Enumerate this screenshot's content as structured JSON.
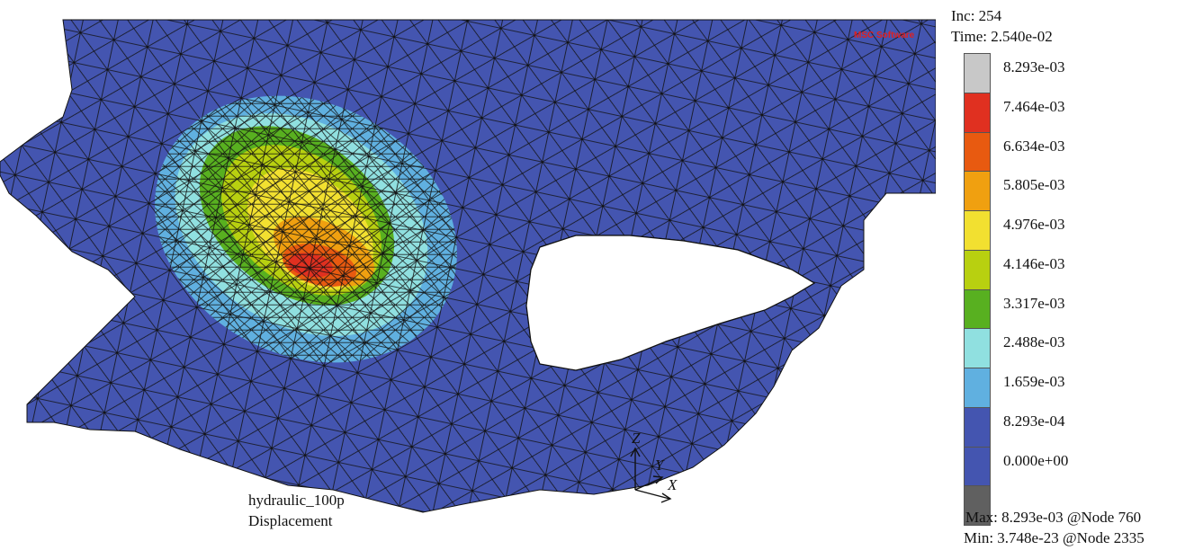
{
  "header": {
    "increment": "Inc: 254",
    "time": "Time: 2.540e-02"
  },
  "logo": {
    "text": "MSC Software",
    "color": "#e02020"
  },
  "legend": {
    "labels": [
      "8.293e-03",
      "7.464e-03",
      "6.634e-03",
      "5.805e-03",
      "4.976e-03",
      "4.146e-03",
      "3.317e-03",
      "2.488e-03",
      "1.659e-03",
      "8.293e-04",
      "0.000e+00"
    ],
    "colors": [
      "#c8c8c8",
      "#e03020",
      "#e85a10",
      "#f0a010",
      "#f2e030",
      "#b8d010",
      "#58b020",
      "#90e0e0",
      "#60b0e0",
      "#4455b0",
      "#4455b0",
      "#606060"
    ]
  },
  "footer": {
    "max": "Max: 8.293e-03 @Node 760",
    "min": "Min: 3.748e-23 @Node 2335"
  },
  "model": {
    "job": "hydraulic_100p",
    "quantity": "Displacement"
  },
  "axes": {
    "z": "Z",
    "y": "Y",
    "x": "X"
  },
  "colors": {
    "mesh_base": "#4455b0",
    "mesh_line": "#111111"
  }
}
